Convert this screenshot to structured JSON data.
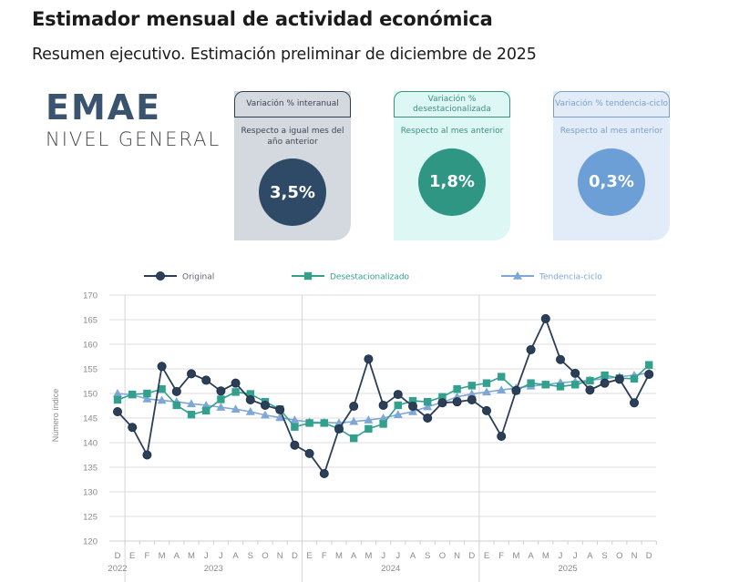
{
  "header": {
    "title": "Estimador mensual de actividad económica",
    "subtitle": "Resumen ejecutivo. Estimación preliminar de diciembre de 2025"
  },
  "logo": {
    "main": "EMAE",
    "sub": "NIVEL GENERAL",
    "color": "#3a5470"
  },
  "cards": [
    {
      "header": "Variación % interanual",
      "description": "Respecto a igual mes del año anterior",
      "value": "3,5%",
      "color": "#2f4a66"
    },
    {
      "header": "Variación % desestacionalizada",
      "description": "Respecto al mes anterior",
      "value": "1,8%",
      "color": "#2f9684"
    },
    {
      "header": "Variación % tendencia-ciclo",
      "description": "Respecto al mes anterior",
      "value": "0,3%",
      "color": "#6c9fd6"
    }
  ],
  "chart_data": {
    "type": "line",
    "title": "",
    "xlabel": "",
    "ylabel": "Número índice",
    "ylim": [
      120,
      170
    ],
    "yticks": [
      120,
      125,
      130,
      135,
      140,
      145,
      150,
      155,
      160,
      165,
      170
    ],
    "grid": true,
    "legend_position": "top",
    "x": [
      "D",
      "E",
      "F",
      "M",
      "A",
      "M",
      "J",
      "J",
      "A",
      "S",
      "O",
      "N",
      "D",
      "E",
      "F",
      "M",
      "A",
      "M",
      "J",
      "J",
      "A",
      "S",
      "O",
      "N",
      "D",
      "E",
      "F",
      "M",
      "A",
      "M",
      "J",
      "J",
      "A",
      "S",
      "O",
      "N",
      "D"
    ],
    "year_groups": [
      {
        "label": "2022",
        "start": 0,
        "end": 0
      },
      {
        "label": "2023",
        "start": 1,
        "end": 12
      },
      {
        "label": "2024",
        "start": 13,
        "end": 24
      },
      {
        "label": "2025",
        "start": 25,
        "end": 36
      }
    ],
    "series": [
      {
        "name": "Original",
        "color": "#2b3f58",
        "marker": "circle",
        "values": [
          146.3,
          143.1,
          137.5,
          155.5,
          150.4,
          154.0,
          152.7,
          150.5,
          152.1,
          148.7,
          147.6,
          146.7,
          139.5,
          137.8,
          133.7,
          142.8,
          147.4,
          157.0,
          147.6,
          149.8,
          147.4,
          145.0,
          148.1,
          148.3,
          148.7,
          146.5,
          141.3,
          150.6,
          158.9,
          165.2,
          156.9,
          154.1,
          150.7,
          152.1,
          152.9,
          148.1,
          153.9
        ]
      },
      {
        "name": "Desestacionalizado",
        "color": "#33a08e",
        "marker": "square",
        "values": [
          148.7,
          149.8,
          150.0,
          150.9,
          147.6,
          145.7,
          146.5,
          148.8,
          150.3,
          149.9,
          148.3,
          146.8,
          143.2,
          144.0,
          144.0,
          142.8,
          140.9,
          142.8,
          143.8,
          147.6,
          148.5,
          148.3,
          149.3,
          150.9,
          151.6,
          152.1,
          153.4,
          150.6,
          152.1,
          151.8,
          151.4,
          151.8,
          152.6,
          153.7,
          153.1,
          153.0,
          155.8
        ]
      },
      {
        "name": "Tendencia-ciclo",
        "color": "#7ea6d6",
        "marker": "triangle",
        "values": [
          150.0,
          149.7,
          148.9,
          148.6,
          148.3,
          147.9,
          147.6,
          147.2,
          146.8,
          146.3,
          145.6,
          145.1,
          144.6,
          144.2,
          144.1,
          144.0,
          144.3,
          144.6,
          145.0,
          145.7,
          146.3,
          147.3,
          148.2,
          149.3,
          149.9,
          150.3,
          150.7,
          151.1,
          151.5,
          151.8,
          152.2,
          152.4,
          152.7,
          153.0,
          153.4,
          153.7,
          154.2
        ]
      }
    ]
  }
}
